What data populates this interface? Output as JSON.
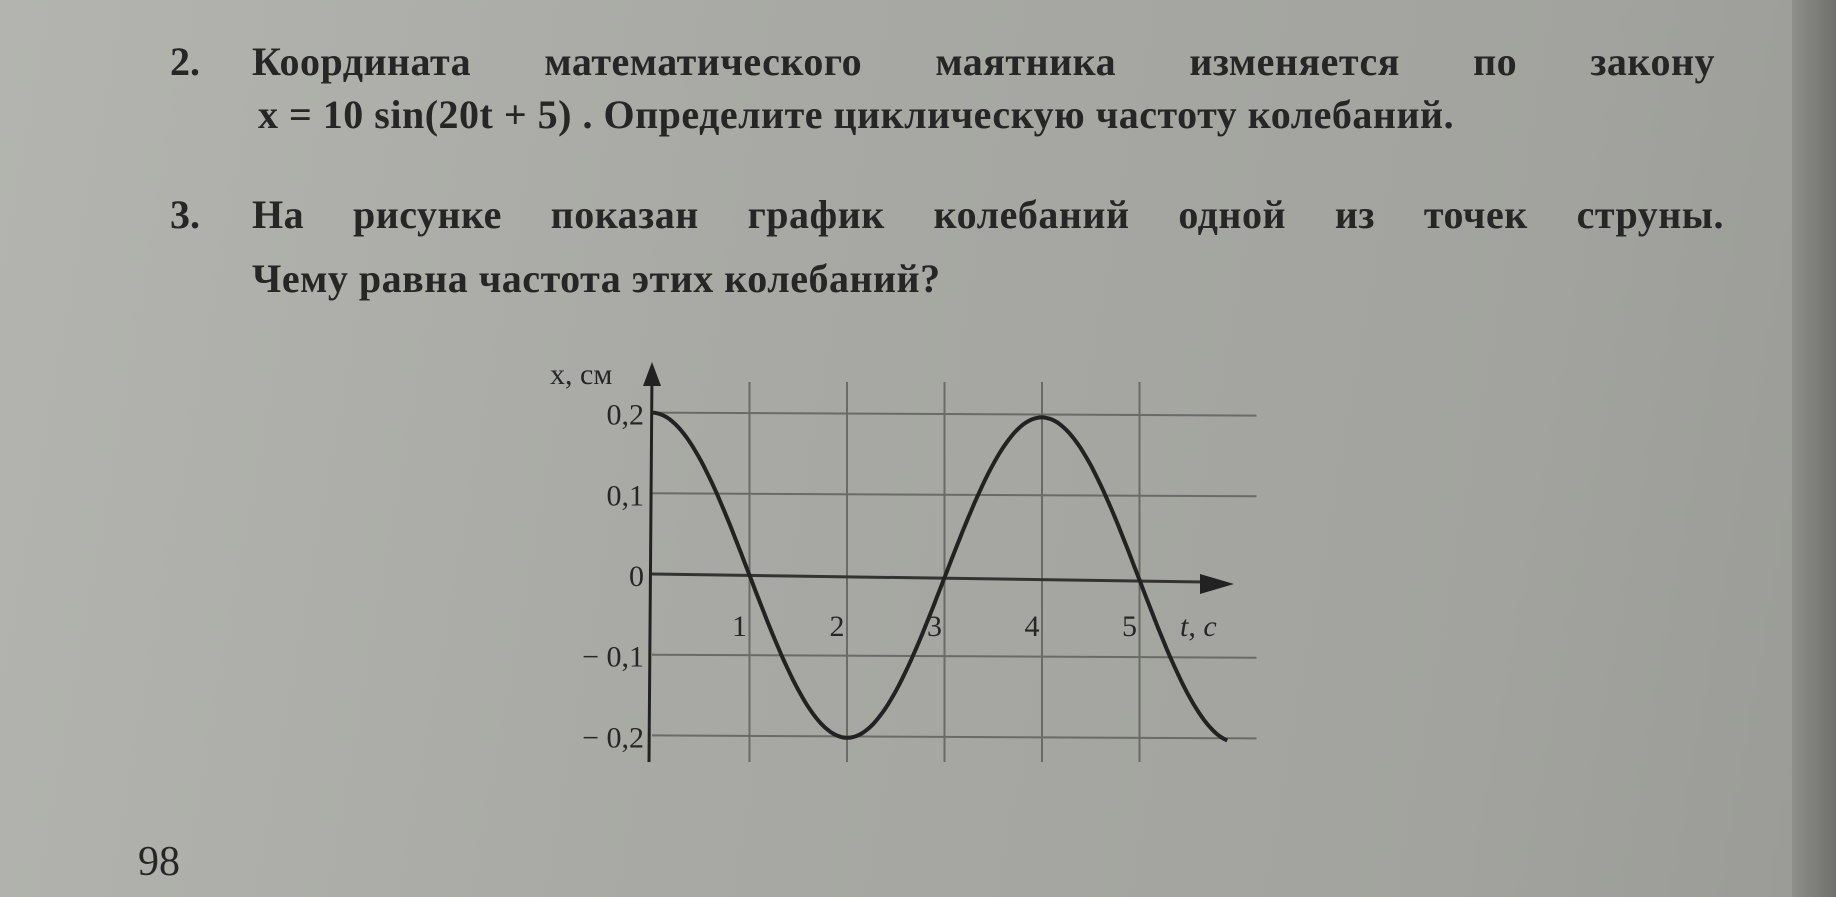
{
  "problems": [
    {
      "number": "2.",
      "lines": [
        "Координата математического маятника изменяется по закону",
        "x = 10 sin(20t + 5) . Определите циклическую частоту колебаний."
      ]
    },
    {
      "number": "3.",
      "lines": [
        "На рисунке показан график колебаний одной из точек струны.",
        "Чему равна частота этих колебаний?"
      ]
    }
  ],
  "page_number": "98",
  "chart_data": {
    "type": "line",
    "title": "",
    "xlabel": "t, с",
    "ylabel": "x, см",
    "xlim": [
      0,
      6.2
    ],
    "ylim": [
      -0.2,
      0.2
    ],
    "x_ticks": [
      "1",
      "2",
      "3",
      "4",
      "5"
    ],
    "y_ticks": [
      "0,2",
      "0,1",
      "0",
      "− 0,1",
      "− 0,2"
    ],
    "grid": true,
    "series": [
      {
        "x": [
          0,
          0.5,
          1,
          1.5,
          2,
          2.5,
          3,
          3.5,
          4,
          4.5,
          5,
          5.5,
          5.9
        ],
        "y": [
          0.2,
          0.141,
          0,
          -0.141,
          -0.2,
          -0.141,
          0,
          0.141,
          0.2,
          0.141,
          0,
          -0.141,
          -0.198
        ]
      }
    ]
  }
}
